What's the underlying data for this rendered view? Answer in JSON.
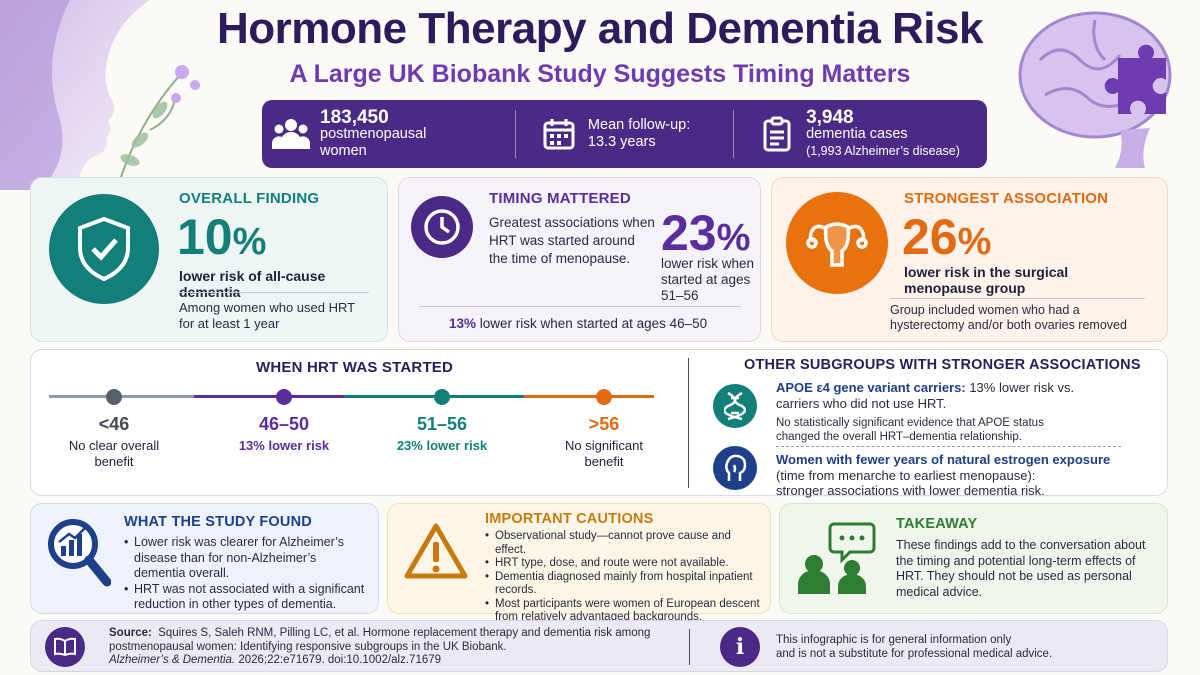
{
  "header": {
    "title": "Hormone Therapy and Dementia Risk",
    "subtitle": "A Large UK Biobank Study Suggests Timing Matters"
  },
  "stats": [
    {
      "icon": "people-icon",
      "value": "183,450",
      "line1": "postmenopausal",
      "line2": "women"
    },
    {
      "icon": "calendar-icon",
      "line1": "Mean follow-up:",
      "line2": "13.3 years"
    },
    {
      "icon": "clipboard-icon",
      "value": "3,948",
      "line1": "dementia cases",
      "line2": "(1,993 Alzheimer’s disease)"
    }
  ],
  "overall": {
    "heading": "OVERALL FINDING",
    "pct": "10",
    "pct_sign": "%",
    "desc": "lower risk of all-cause dementia",
    "note_line1": "Among women who used HRT",
    "note_line2": "for at least 1 year",
    "icon": "shield-check-icon"
  },
  "timing": {
    "heading": "TIMING MATTERED",
    "text_line1": "Greatest associations when",
    "text_line2": "HRT was started around",
    "text_line3": "the time of menopause.",
    "pct": "23",
    "pct_sign": "%",
    "pct_desc_line1": "lower risk when",
    "pct_desc_line2": "started at ages",
    "pct_desc_line3": "51–56",
    "footer_pct": "13%",
    "footer_text": " lower risk when started at ages 46–50",
    "icon": "clock-icon"
  },
  "strongest": {
    "heading": "STRONGEST ASSOCIATION",
    "pct": "26",
    "pct_sign": "%",
    "desc_line1": "lower risk in the surgical",
    "desc_line2": "menopause group",
    "note_line1": "Group included women who had a",
    "note_line2": "hysterectomy and/or both ovaries removed",
    "icon": "uterus-icon"
  },
  "when": {
    "heading": "WHEN HRT WAS STARTED",
    "points": [
      {
        "label": "<46",
        "desc_line1": "No clear overall",
        "desc_line2": "benefit",
        "color": "#555e6b"
      },
      {
        "label": "46–50",
        "desc_line1": "13% lower risk",
        "desc_line2": "",
        "color": "#5a2d9c"
      },
      {
        "label": "51–56",
        "desc_line1": "23% lower risk",
        "desc_line2": "",
        "color": "#137f78"
      },
      {
        "label": ">56",
        "desc_line1": "No significant",
        "desc_line2": "benefit",
        "color": "#e26a12"
      }
    ]
  },
  "subgroups": {
    "heading": "OTHER SUBGROUPS WITH STRONGER ASSOCIATIONS",
    "apoe_bold": "APOE ε4 gene variant carriers:",
    "apoe_text": " 13% lower risk vs.",
    "apoe_text2": "carriers who did not use HRT.",
    "apoe_note_line1": "No statistically significant evidence that APOE status",
    "apoe_note_line2": "changed the overall HRT–dementia relationship.",
    "estrogen_bold": "Women with fewer years of natural estrogen exposure",
    "estrogen_line2": "(time from menarche to earliest menopause):",
    "estrogen_line3": "stronger associations with lower dementia risk.",
    "icon1": "dna-icon",
    "icon2": "woman-profile-icon"
  },
  "found": {
    "heading": "WHAT THE STUDY FOUND",
    "bullets": [
      "Lower risk was clearer for Alzheimer’s disease than for non-Alzheimer’s dementia overall.",
      "HRT was not associated with a significant reduction in other types of dementia."
    ],
    "icon": "magnifier-chart-icon"
  },
  "cautions": {
    "heading": "IMPORTANT CAUTIONS",
    "bullets": [
      "Observational study—cannot prove cause and effect.",
      "HRT type, dose, and route were not available.",
      "Dementia diagnosed mainly from hospital inpatient records.",
      "Most participants were women of European descent from relatively advantaged backgrounds."
    ],
    "icon": "warning-icon"
  },
  "takeaway": {
    "heading": "TAKEAWAY",
    "text": "These findings add to the conversation about the timing and potential long-term effects of HRT. They should not be used as personal medical advice.",
    "icon": "discussion-icon"
  },
  "source": {
    "label": "Source:",
    "line1": "Squires S, Saleh RNM, Pilling LC, et al.  Hormone replacement therapy and dementia risk among",
    "line2": "postmenopausal women: Identifying responsive subgroups in the UK Biobank.",
    "journal": "Alzheimer’s & Dementia.",
    "ref": " 2026;22:e71679.  doi:10.1002/alz.71679",
    "disclaimer_line1": "This infographic is for general information only",
    "disclaimer_line2": "and is not a substitute for professional medical advice.",
    "icon": "book-icon",
    "info_icon": "info-icon"
  }
}
